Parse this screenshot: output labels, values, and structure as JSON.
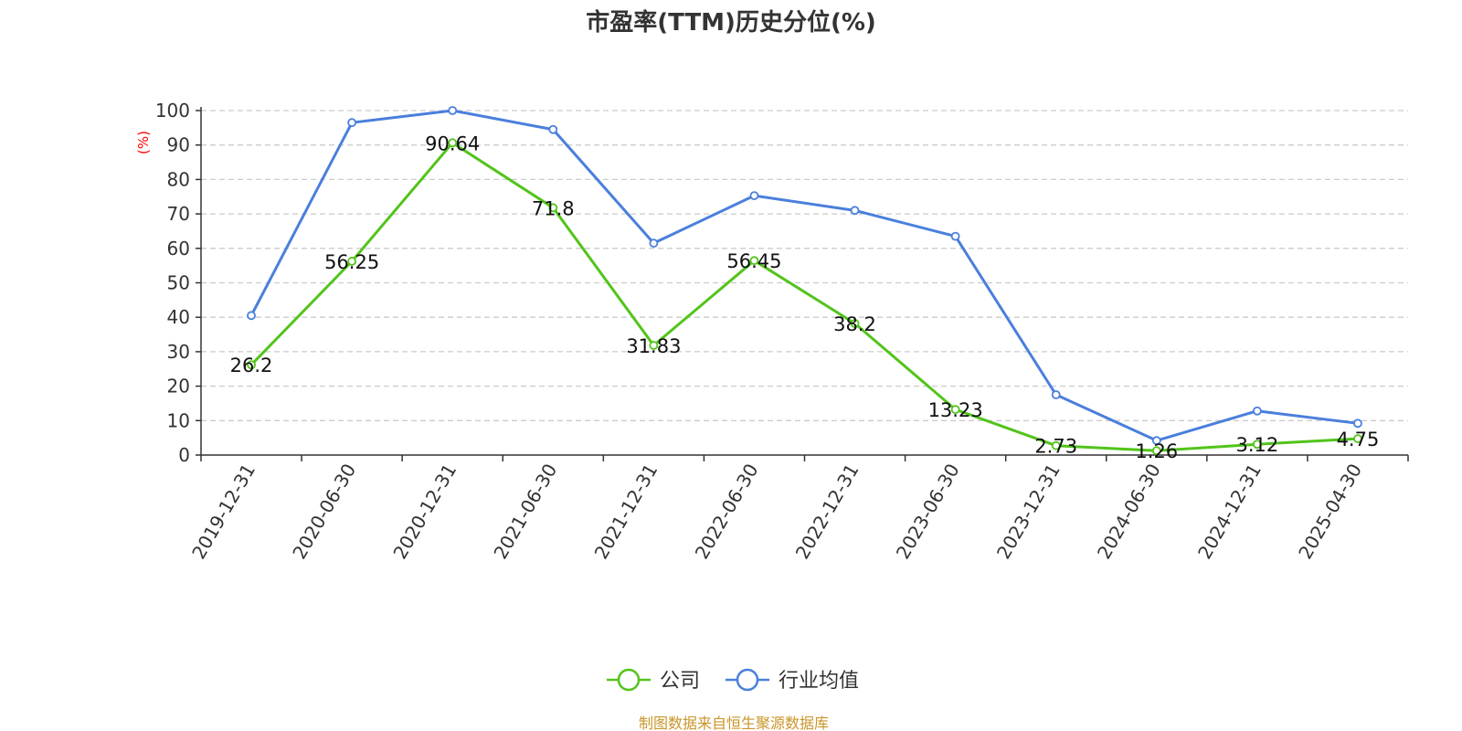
{
  "chart_data": {
    "type": "line",
    "title": "市盈率(TTM)历史分位(%)",
    "ylabel": "(%)",
    "xlabel": "",
    "ylim": [
      0,
      100
    ],
    "yticks": [
      0,
      10,
      20,
      30,
      40,
      50,
      60,
      70,
      80,
      90,
      100
    ],
    "grid": true,
    "legend_position": "bottom",
    "categories": [
      "2019-12-31",
      "2020-06-30",
      "2020-12-31",
      "2021-06-30",
      "2021-12-31",
      "2022-06-30",
      "2022-12-31",
      "2023-06-30",
      "2023-12-31",
      "2024-06-30",
      "2024-12-31",
      "2025-04-30"
    ],
    "series": [
      {
        "name": "公司",
        "color": "#52c41a",
        "values": [
          26.2,
          56.25,
          90.64,
          71.8,
          31.83,
          56.45,
          38.2,
          13.23,
          2.73,
          1.26,
          3.12,
          4.75
        ],
        "labels": [
          "26.2",
          "56.25",
          "90.64",
          "71.8",
          "31.83",
          "56.45",
          "38.2",
          "13.23",
          "2.73",
          "1.26",
          "3.12",
          "4.75"
        ]
      },
      {
        "name": "行业均值",
        "color": "#4a7fdc",
        "values": [
          40.5,
          96.5,
          100,
          94.5,
          61.5,
          75.3,
          71,
          63.5,
          17.5,
          4.2,
          12.8,
          9.2
        ]
      }
    ],
    "source": "制图数据来自恒生聚源数据库",
    "source_color": "#c9962a",
    "ylabel_color": "#ff0000",
    "axis_color": "#333333",
    "grid_color": "#cccccc"
  }
}
